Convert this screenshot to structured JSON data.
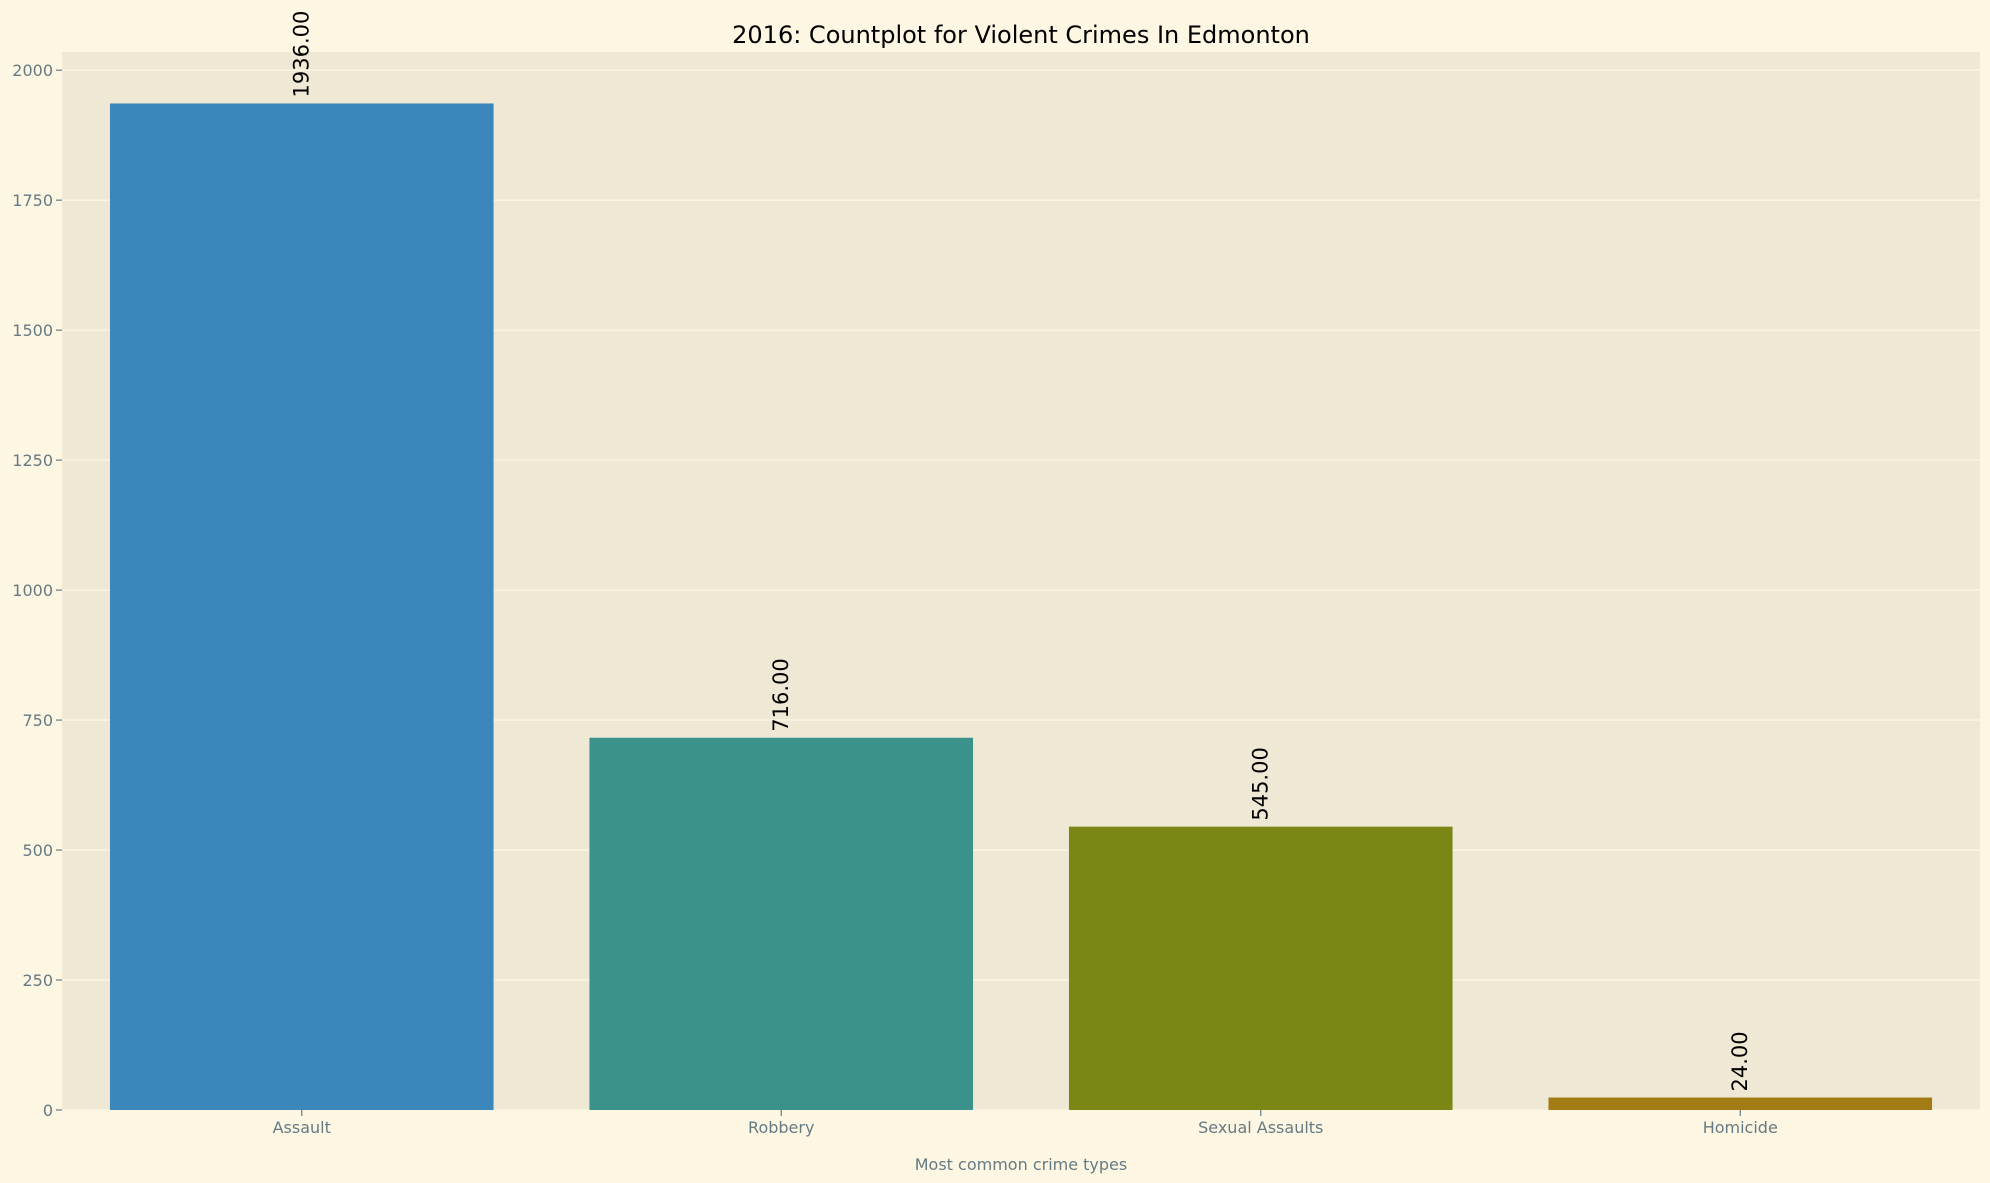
{
  "chart_data": {
    "type": "bar",
    "title": "2016: Countplot for Violent Crimes In Edmonton",
    "xlabel": "Most common crime types",
    "ylabel": "",
    "categories": [
      "Assault",
      "Robbery",
      "Sexual Assaults",
      "Homicide"
    ],
    "values": [
      1936,
      716,
      545,
      24
    ],
    "data_labels": [
      "1936.00",
      "716.00",
      "545.00",
      "24.00"
    ],
    "bar_colors": [
      "#3b87bb",
      "#3a928b",
      "#7a8714",
      "#a37b14"
    ],
    "ylim": [
      0,
      2035
    ],
    "yticks": [
      0,
      250,
      500,
      750,
      1000,
      1250,
      1500,
      1750,
      2000
    ],
    "grid": true,
    "legend": "none",
    "colors": {
      "figure_bg": "#fdf6e3",
      "axes_bg": "#eee8d5",
      "grid": "#fdf6e3",
      "tick_text": "#657b83",
      "title_text": "#000000"
    }
  }
}
